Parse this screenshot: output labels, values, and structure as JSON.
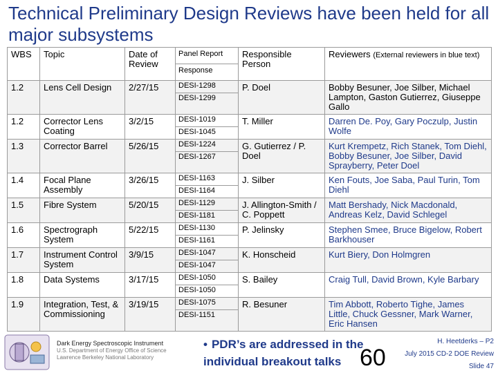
{
  "title": "Technical Preliminary Design Reviews have been held for all major subsystems",
  "table": {
    "headers": {
      "wbs": "WBS",
      "topic": "Topic",
      "date": "Date of Review",
      "panel_report": "Panel Report",
      "response": "Response",
      "person": "Responsible Person",
      "reviewers": "Reviewers",
      "reviewers_note": "(External reviewers in blue text)"
    },
    "rows": [
      {
        "wbs": "1.2",
        "topic": "Lens Cell Design",
        "date": "2/27/15",
        "panel": [
          "DESI-1298",
          "DESI-1299"
        ],
        "person": "P. Doel",
        "reviewers": "Bobby Besuner, Joe Silber, Michael Lampton, Gaston Gutierrez, Giuseppe Gallo",
        "external": false
      },
      {
        "wbs": "1.2",
        "topic": "Corrector Lens Coating",
        "date": "3/2/15",
        "panel": [
          "DESI-1019",
          "DESI-1045"
        ],
        "person": "T. Miller",
        "reviewers": "Darren De. Poy, Gary Poczulp, Justin Wolfe",
        "external": true
      },
      {
        "wbs": "1.3",
        "topic": "Corrector Barrel",
        "date": "5/26/15",
        "panel": [
          "DESI-1224",
          "DESI-1267"
        ],
        "person": "G. Gutierrez / P. Doel",
        "reviewers": "Kurt Krempetz, Rich Stanek, Tom Diehl, Bobby Besuner, Joe Silber, David Sprayberry, Peter Doel",
        "external": true
      },
      {
        "wbs": "1.4",
        "topic": "Focal Plane Assembly",
        "date": "3/26/15",
        "panel": [
          "DESI-1163",
          "DESI-1164"
        ],
        "person": "J. Silber",
        "reviewers": "Ken Fouts, Joe Saba, Paul Turin, Tom Diehl",
        "external": true
      },
      {
        "wbs": "1.5",
        "topic": "Fibre System",
        "date": "5/20/15",
        "panel": [
          "DESI-1129",
          "DESI-1181"
        ],
        "person": "J. Allington-Smith / C. Poppett",
        "reviewers": "Matt Bershady, Nick Macdonald, Andreas Kelz, David Schlegel",
        "external": true
      },
      {
        "wbs": "1.6",
        "topic": "Spectrograph System",
        "date": "5/22/15",
        "panel": [
          "DESI-1130",
          "DESI-1161"
        ],
        "person": "P. Jelinsky",
        "reviewers": "Stephen Smee, Bruce Bigelow, Robert Barkhouser",
        "external": true
      },
      {
        "wbs": "1.7",
        "topic": "Instrument Control System",
        "date": "3/9/15",
        "panel": [
          "DESI-1047",
          "DESI-1047"
        ],
        "person": "K. Honscheid",
        "reviewers": "Kurt Biery, Don Holmgren",
        "external": true
      },
      {
        "wbs": "1.8",
        "topic": "Data Systems",
        "date": "3/17/15",
        "panel": [
          "DESI-1050",
          "DESI-1050"
        ],
        "person": "S. Bailey",
        "reviewers": "Craig Tull, David Brown, Kyle Barbary",
        "external": true
      },
      {
        "wbs": "1.9",
        "topic": "Integration, Test, & Commissioning",
        "date": "3/19/15",
        "panel": [
          "DESI-1075",
          "DESI-1151"
        ],
        "person": "R. Besuner",
        "reviewers": "Tim Abbott, Roberto Tighe, James Little, Chuck Gessner, Mark Warner, Eric Hansen",
        "external": true
      }
    ]
  },
  "footer": {
    "instrument": "Dark Energy Spectroscopic Instrument",
    "agency": "U.S. Department of Energy Office of Science",
    "lab": "Lawrence Berkeley National Laboratory",
    "note_bullet": "•",
    "note": "PDR’s are addressed in the individual breakout talks",
    "page_number": "60",
    "author": "H. Heetderks – P2",
    "review": "July 2015 CD-2 DOE Review",
    "slide": "Slide 47"
  },
  "colors": {
    "title": "#1f3a8a",
    "external_reviewer": "#1f3a8a",
    "row_shade": "#f2f2f2",
    "border": "#9a9a9a"
  }
}
